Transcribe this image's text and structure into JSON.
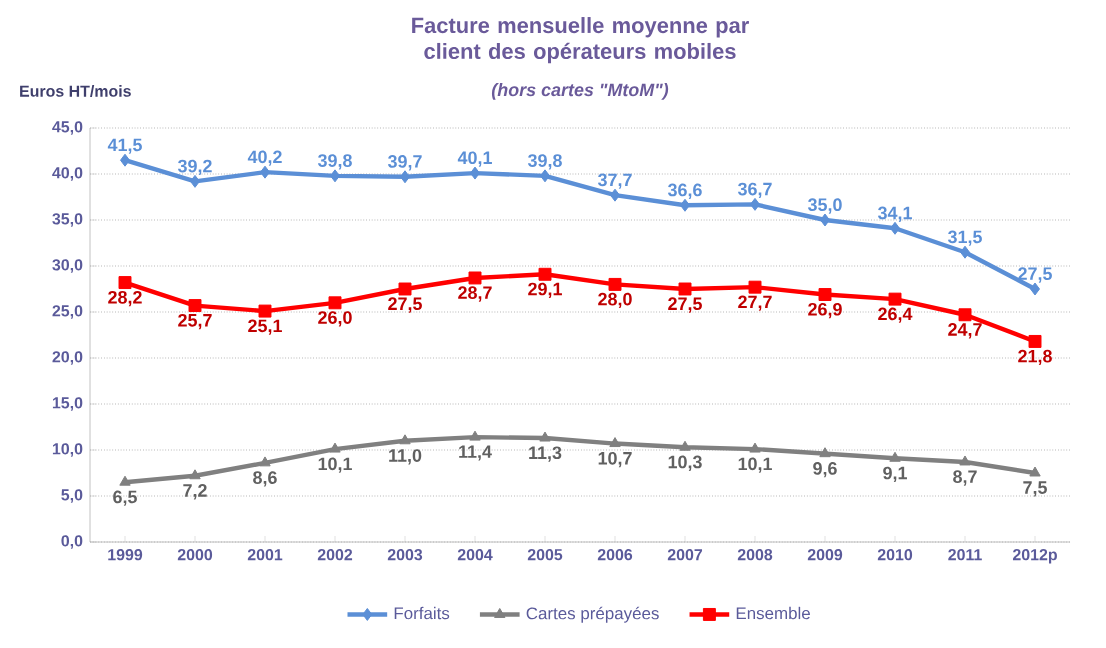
{
  "chart_data": {
    "type": "line",
    "title": "Facture mensuelle moyenne par client des opérateurs mobiles",
    "subtitle": "(hors cartes \"MtoM\")",
    "ylabel": "Euros HT/mois",
    "categories": [
      "1999",
      "2000",
      "2001",
      "2002",
      "2003",
      "2004",
      "2005",
      "2006",
      "2007",
      "2008",
      "2009",
      "2010",
      "2011",
      "2012p"
    ],
    "ylim": [
      0,
      45
    ],
    "yticks": [
      {
        "value": 0,
        "label": "0,0"
      },
      {
        "value": 5,
        "label": "5,0"
      },
      {
        "value": 10,
        "label": "10,0"
      },
      {
        "value": 15,
        "label": "15,0"
      },
      {
        "value": 20,
        "label": "20,0"
      },
      {
        "value": 25,
        "label": "25,0"
      },
      {
        "value": 30,
        "label": "30,0"
      },
      {
        "value": 35,
        "label": "35,0"
      },
      {
        "value": 40,
        "label": "40,0"
      },
      {
        "value": 45,
        "label": "45,0"
      }
    ],
    "grid": "y",
    "legend": "bottom",
    "line_style": "solid",
    "series": [
      {
        "name": "Forfaits",
        "color": "#5b8fd6",
        "marker": "diamond",
        "values": [
          41.5,
          39.2,
          40.2,
          39.8,
          39.7,
          40.1,
          39.8,
          37.7,
          36.6,
          36.7,
          35.0,
          34.1,
          31.5,
          27.5
        ],
        "value_labels": [
          "41,5",
          "39,2",
          "40,2",
          "39,8",
          "39,7",
          "40,1",
          "39,8",
          "37,7",
          "36,6",
          "36,7",
          "35,0",
          "34,1",
          "31,5",
          "27,5"
        ]
      },
      {
        "name": "Cartes prépayées",
        "color": "#808080",
        "marker": "triangle",
        "values": [
          6.5,
          7.2,
          8.6,
          10.1,
          11.0,
          11.4,
          11.3,
          10.7,
          10.3,
          10.1,
          9.6,
          9.1,
          8.7,
          7.5
        ],
        "value_labels": [
          "6,5",
          "7,2",
          "8,6",
          "10,1",
          "11,0",
          "11,4",
          "11,3",
          "10,7",
          "10,3",
          "10,1",
          "9,6",
          "9,1",
          "8,7",
          "7,5"
        ]
      },
      {
        "name": "Ensemble",
        "color": "#ff0000",
        "marker": "square",
        "values": [
          28.2,
          25.7,
          25.1,
          26.0,
          27.5,
          28.7,
          29.1,
          28.0,
          27.5,
          27.7,
          26.9,
          26.4,
          24.7,
          21.8
        ],
        "value_labels": [
          "28,2",
          "25,7",
          "25,1",
          "26,0",
          "27,5",
          "28,7",
          "29,1",
          "28,0",
          "27,5",
          "27,7",
          "26,9",
          "26,4",
          "24,7",
          "21,8"
        ]
      }
    ]
  }
}
